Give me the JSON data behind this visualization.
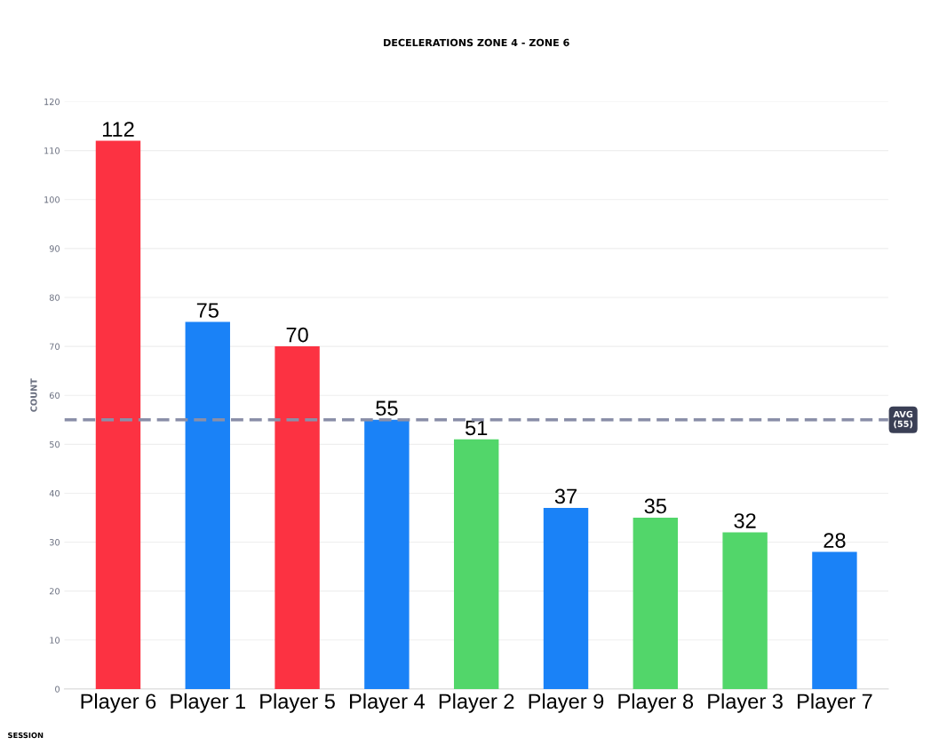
{
  "chart_data": {
    "type": "bar",
    "title": "DECELERATIONS ZONE 4 - ZONE 6",
    "ylabel": "COUNT",
    "categories": [
      "Player 6",
      "Player 1",
      "Player 5",
      "Player 4",
      "Player 2",
      "Player 9",
      "Player 8",
      "Player 3",
      "Player 7"
    ],
    "values": [
      112,
      75,
      70,
      55,
      51,
      37,
      35,
      32,
      28
    ],
    "colors": [
      "#fc3242",
      "#1a82f7",
      "#fc3242",
      "#1a82f7",
      "#52d66a",
      "#1a82f7",
      "#52d66a",
      "#52d66a",
      "#1a82f7"
    ],
    "data_labels": true,
    "ylim": [
      0,
      120
    ],
    "yticks": [
      0,
      10,
      20,
      30,
      40,
      50,
      60,
      70,
      80,
      90,
      100,
      110,
      120
    ],
    "grid": "y",
    "ref_lines": [
      {
        "axis": "y",
        "value": 55,
        "label": "AVG\n(55)",
        "color": "#8a8fa8",
        "line_style": "dashed"
      }
    ],
    "annotations": [
      "SESSION"
    ]
  }
}
